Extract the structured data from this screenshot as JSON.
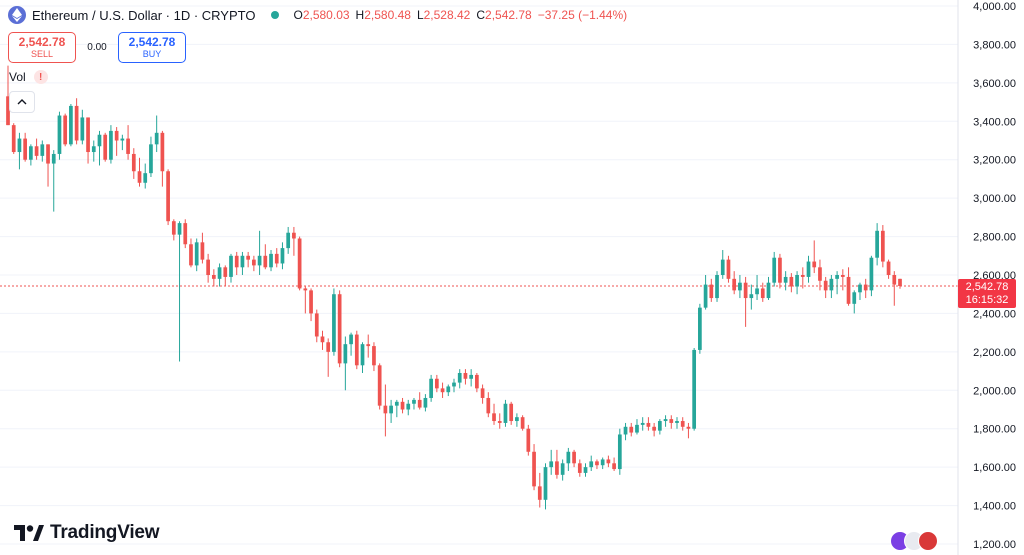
{
  "header": {
    "title": "Ethereum / U.S. Dollar · 1D · CRYPTO",
    "ohlc": {
      "o_label": "O",
      "o": "2,580.03",
      "h_label": "H",
      "h": "2,580.48",
      "l_label": "L",
      "l": "2,528.42",
      "c_label": "C",
      "c": "2,542.78",
      "change": "−37.25 (−1.44%)"
    }
  },
  "trade": {
    "sell_price": "2,542.78",
    "sell_label": "SELL",
    "spread": "0.00",
    "buy_price": "2,542.78",
    "buy_label": "BUY"
  },
  "indicator": {
    "vol_label": "Vol",
    "warn": "!"
  },
  "brand": {
    "name": "TradingView"
  },
  "price_tag": {
    "price": "2,542.78",
    "countdown": "16:15:32"
  },
  "colors": {
    "up": "#26a69a",
    "down": "#ef5350",
    "last_price_line": "#ef5350",
    "axis_text": "#131722",
    "grid": "#f0f3fa"
  },
  "chart_data": {
    "type": "candlestick",
    "y_axis": {
      "side": "right",
      "min": 1200,
      "max": 4000,
      "ticks": [
        "1,200.00",
        "1,400.00",
        "1,600.00",
        "1,800.00",
        "2,000.00",
        "2,200.00",
        "2,400.00",
        "2,600.00",
        "2,800.00",
        "3,000.00",
        "3,200.00",
        "3,400.00",
        "3,600.00",
        "3,800.00",
        "4,000.00"
      ]
    },
    "last_price": 2542.78,
    "candles": [
      [
        3530,
        3690,
        3380,
        3380
      ],
      [
        3380,
        3390,
        3230,
        3240
      ],
      [
        3240,
        3340,
        3150,
        3310
      ],
      [
        3310,
        3340,
        3190,
        3200
      ],
      [
        3200,
        3280,
        3170,
        3270
      ],
      [
        3270,
        3310,
        3200,
        3220
      ],
      [
        3220,
        3300,
        3190,
        3280
      ],
      [
        3280,
        3280,
        3060,
        3180
      ],
      [
        3180,
        3250,
        2930,
        3230
      ],
      [
        3230,
        3450,
        3200,
        3430
      ],
      [
        3430,
        3440,
        3270,
        3280
      ],
      [
        3280,
        3490,
        3270,
        3480
      ],
      [
        3480,
        3520,
        3280,
        3300
      ],
      [
        3300,
        3460,
        3280,
        3420
      ],
      [
        3420,
        3420,
        3180,
        3240
      ],
      [
        3240,
        3300,
        3190,
        3270
      ],
      [
        3270,
        3350,
        3170,
        3330
      ],
      [
        3330,
        3340,
        3190,
        3200
      ],
      [
        3200,
        3380,
        3180,
        3350
      ],
      [
        3350,
        3370,
        3220,
        3300
      ],
      [
        3300,
        3330,
        3250,
        3310
      ],
      [
        3310,
        3380,
        3200,
        3230
      ],
      [
        3230,
        3260,
        3100,
        3140
      ],
      [
        3140,
        3210,
        3060,
        3080
      ],
      [
        3080,
        3180,
        3050,
        3130
      ],
      [
        3130,
        3320,
        3110,
        3280
      ],
      [
        3280,
        3430,
        3240,
        3340
      ],
      [
        3340,
        3350,
        3060,
        3140
      ],
      [
        3140,
        3150,
        2860,
        2880
      ],
      [
        2880,
        2890,
        2780,
        2810
      ],
      [
        2810,
        2880,
        2150,
        2870
      ],
      [
        2870,
        2890,
        2740,
        2760
      ],
      [
        2760,
        2790,
        2640,
        2650
      ],
      [
        2650,
        2790,
        2620,
        2770
      ],
      [
        2770,
        2820,
        2660,
        2680
      ],
      [
        2680,
        2710,
        2560,
        2600
      ],
      [
        2600,
        2630,
        2540,
        2580
      ],
      [
        2580,
        2660,
        2540,
        2640
      ],
      [
        2640,
        2650,
        2540,
        2590
      ],
      [
        2590,
        2710,
        2560,
        2700
      ],
      [
        2700,
        2720,
        2600,
        2640
      ],
      [
        2640,
        2720,
        2600,
        2700
      ],
      [
        2700,
        2720,
        2640,
        2680
      ],
      [
        2680,
        2700,
        2620,
        2650
      ],
      [
        2650,
        2830,
        2600,
        2700
      ],
      [
        2700,
        2760,
        2630,
        2640
      ],
      [
        2640,
        2730,
        2620,
        2710
      ],
      [
        2710,
        2740,
        2640,
        2660
      ],
      [
        2660,
        2770,
        2630,
        2740
      ],
      [
        2740,
        2850,
        2710,
        2820
      ],
      [
        2820,
        2850,
        2700,
        2790
      ],
      [
        2790,
        2800,
        2520,
        2530
      ],
      [
        2530,
        2540,
        2400,
        2520
      ],
      [
        2520,
        2530,
        2360,
        2400
      ],
      [
        2400,
        2420,
        2250,
        2280
      ],
      [
        2280,
        2310,
        2210,
        2250
      ],
      [
        2250,
        2270,
        2070,
        2200
      ],
      [
        2200,
        2530,
        2180,
        2500
      ],
      [
        2500,
        2520,
        2120,
        2140
      ],
      [
        2140,
        2280,
        2000,
        2240
      ],
      [
        2240,
        2300,
        2180,
        2290
      ],
      [
        2290,
        2310,
        2110,
        2130
      ],
      [
        2130,
        2250,
        2090,
        2240
      ],
      [
        2240,
        2290,
        2170,
        2230
      ],
      [
        2230,
        2250,
        2100,
        2130
      ],
      [
        2130,
        2140,
        1900,
        1920
      ],
      [
        1920,
        2030,
        1760,
        1880
      ],
      [
        1880,
        1950,
        1830,
        1920
      ],
      [
        1920,
        1950,
        1860,
        1940
      ],
      [
        1940,
        1960,
        1880,
        1900
      ],
      [
        1900,
        1950,
        1870,
        1930
      ],
      [
        1930,
        1960,
        1900,
        1950
      ],
      [
        1950,
        1990,
        1900,
        1910
      ],
      [
        1910,
        1980,
        1890,
        1960
      ],
      [
        1960,
        2080,
        1940,
        2060
      ],
      [
        2060,
        2080,
        1990,
        2010
      ],
      [
        2010,
        2040,
        1960,
        1990
      ],
      [
        1990,
        2030,
        1970,
        2020
      ],
      [
        2020,
        2060,
        1990,
        2040
      ],
      [
        2040,
        2110,
        2010,
        2090
      ],
      [
        2090,
        2110,
        2030,
        2060
      ],
      [
        2060,
        2110,
        2020,
        2080
      ],
      [
        2080,
        2090,
        1990,
        2010
      ],
      [
        2010,
        2030,
        1930,
        1960
      ],
      [
        1960,
        1990,
        1860,
        1880
      ],
      [
        1880,
        1930,
        1820,
        1840
      ],
      [
        1840,
        1880,
        1800,
        1830
      ],
      [
        1830,
        1950,
        1810,
        1930
      ],
      [
        1930,
        1940,
        1820,
        1840
      ],
      [
        1840,
        1880,
        1810,
        1860
      ],
      [
        1860,
        1870,
        1790,
        1800
      ],
      [
        1800,
        1820,
        1660,
        1680
      ],
      [
        1680,
        1720,
        1480,
        1500
      ],
      [
        1500,
        1570,
        1390,
        1430
      ],
      [
        1430,
        1620,
        1380,
        1600
      ],
      [
        1600,
        1690,
        1560,
        1630
      ],
      [
        1630,
        1690,
        1540,
        1560
      ],
      [
        1560,
        1640,
        1530,
        1620
      ],
      [
        1620,
        1700,
        1580,
        1680
      ],
      [
        1680,
        1690,
        1600,
        1620
      ],
      [
        1620,
        1640,
        1550,
        1570
      ],
      [
        1570,
        1620,
        1550,
        1600
      ],
      [
        1600,
        1660,
        1580,
        1630
      ],
      [
        1630,
        1640,
        1590,
        1610
      ],
      [
        1610,
        1650,
        1590,
        1640
      ],
      [
        1640,
        1660,
        1600,
        1620
      ],
      [
        1620,
        1650,
        1580,
        1590
      ],
      [
        1590,
        1800,
        1560,
        1770
      ],
      [
        1770,
        1830,
        1740,
        1810
      ],
      [
        1810,
        1830,
        1760,
        1780
      ],
      [
        1780,
        1850,
        1770,
        1820
      ],
      [
        1820,
        1860,
        1790,
        1830
      ],
      [
        1830,
        1860,
        1790,
        1810
      ],
      [
        1810,
        1830,
        1760,
        1790
      ],
      [
        1790,
        1850,
        1770,
        1840
      ],
      [
        1840,
        1870,
        1810,
        1850
      ],
      [
        1850,
        1870,
        1800,
        1830
      ],
      [
        1830,
        1860,
        1800,
        1840
      ],
      [
        1840,
        1860,
        1790,
        1810
      ],
      [
        1810,
        1830,
        1750,
        1800
      ],
      [
        1800,
        2220,
        1790,
        2210
      ],
      [
        2210,
        2450,
        2190,
        2430
      ],
      [
        2430,
        2600,
        2420,
        2550
      ],
      [
        2550,
        2580,
        2460,
        2480
      ],
      [
        2480,
        2620,
        2460,
        2600
      ],
      [
        2600,
        2730,
        2580,
        2680
      ],
      [
        2680,
        2700,
        2560,
        2580
      ],
      [
        2580,
        2620,
        2500,
        2520
      ],
      [
        2520,
        2600,
        2480,
        2560
      ],
      [
        2560,
        2590,
        2330,
        2480
      ],
      [
        2480,
        2550,
        2420,
        2500
      ],
      [
        2500,
        2600,
        2470,
        2530
      ],
      [
        2530,
        2560,
        2460,
        2480
      ],
      [
        2480,
        2590,
        2470,
        2560
      ],
      [
        2560,
        2720,
        2540,
        2690
      ],
      [
        2690,
        2710,
        2530,
        2560
      ],
      [
        2560,
        2620,
        2520,
        2590
      ],
      [
        2590,
        2610,
        2510,
        2540
      ],
      [
        2540,
        2620,
        2500,
        2600
      ],
      [
        2600,
        2640,
        2530,
        2590
      ],
      [
        2590,
        2700,
        2560,
        2670
      ],
      [
        2670,
        2780,
        2610,
        2640
      ],
      [
        2640,
        2680,
        2520,
        2570
      ],
      [
        2570,
        2590,
        2480,
        2520
      ],
      [
        2520,
        2600,
        2480,
        2580
      ],
      [
        2580,
        2620,
        2500,
        2600
      ],
      [
        2600,
        2630,
        2520,
        2590
      ],
      [
        2590,
        2640,
        2440,
        2450
      ],
      [
        2450,
        2520,
        2400,
        2510
      ],
      [
        2510,
        2560,
        2470,
        2550
      ],
      [
        2550,
        2580,
        2480,
        2520
      ],
      [
        2520,
        2700,
        2490,
        2690
      ],
      [
        2690,
        2870,
        2650,
        2830
      ],
      [
        2830,
        2860,
        2640,
        2670
      ],
      [
        2670,
        2680,
        2580,
        2600
      ],
      [
        2600,
        2620,
        2440,
        2550
      ],
      [
        2580.03,
        2580.48,
        2528.42,
        2542.78
      ]
    ]
  }
}
